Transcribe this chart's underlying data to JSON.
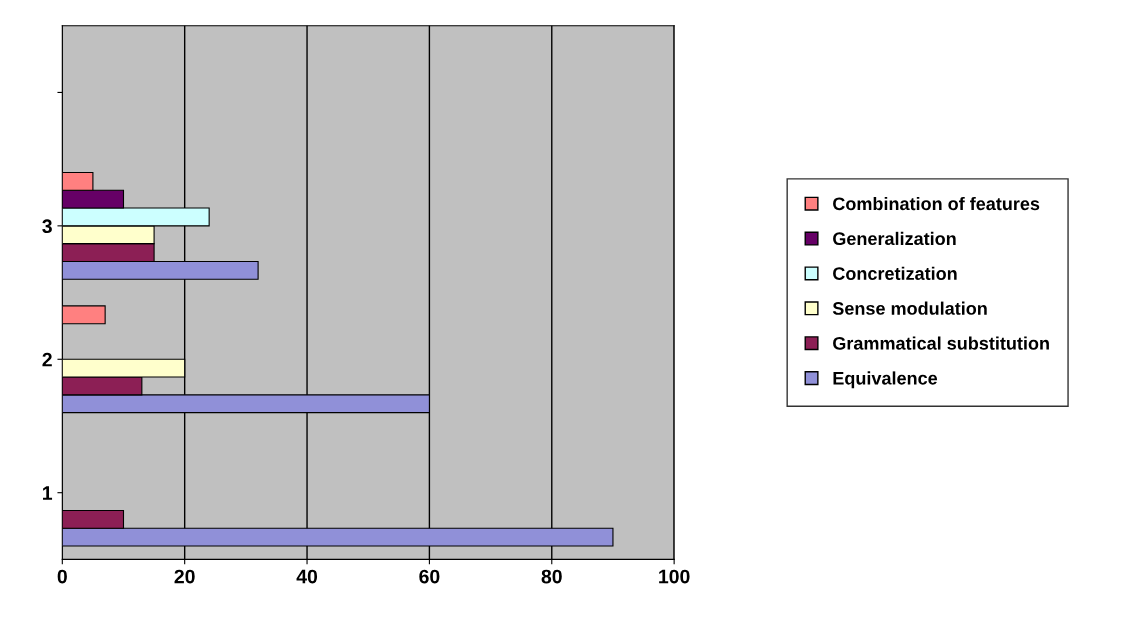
{
  "chart_data": {
    "type": "bar",
    "orientation": "horizontal",
    "categories": [
      null,
      "3",
      "2",
      "1"
    ],
    "series": [
      {
        "name": "Equivalence",
        "color": "#9090d8",
        "values": [
          null,
          32,
          60,
          90
        ]
      },
      {
        "name": "Grammatical substitution",
        "color": "#8c1f55",
        "values": [
          null,
          15,
          13,
          10
        ]
      },
      {
        "name": "Sense modulation",
        "color": "#ffffcc",
        "values": [
          null,
          15,
          20,
          null
        ]
      },
      {
        "name": "Concretization",
        "color": "#ccffff",
        "values": [
          null,
          24,
          null,
          null
        ]
      },
      {
        "name": "Generalization",
        "color": "#660066",
        "values": [
          null,
          10,
          null,
          null
        ]
      },
      {
        "name": "Combination of features",
        "color": "#ff8080",
        "values": [
          null,
          5,
          7,
          null
        ]
      }
    ],
    "xlim": [
      0,
      100
    ],
    "xticks": [
      0,
      20,
      40,
      60,
      80,
      100
    ],
    "grid": "x",
    "legend": "right"
  }
}
